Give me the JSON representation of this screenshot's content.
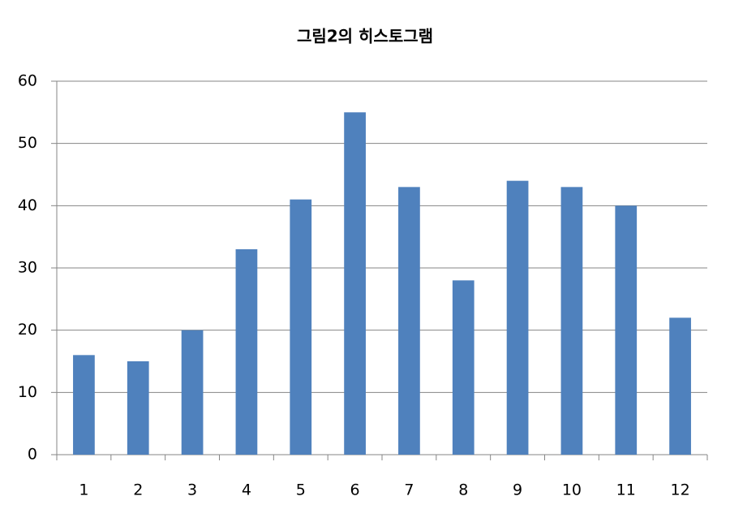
{
  "chart_data": {
    "type": "bar",
    "title": "그림2의 히스토그램",
    "categories": [
      "1",
      "2",
      "3",
      "4",
      "5",
      "6",
      "7",
      "8",
      "9",
      "10",
      "11",
      "12"
    ],
    "values": [
      16,
      15,
      20,
      33,
      41,
      55,
      43,
      28,
      44,
      43,
      40,
      22
    ],
    "color": "#4f81bd",
    "ylim": [
      0,
      60
    ],
    "yticks": [
      0,
      10,
      20,
      30,
      40,
      50,
      60
    ],
    "grid": true
  }
}
